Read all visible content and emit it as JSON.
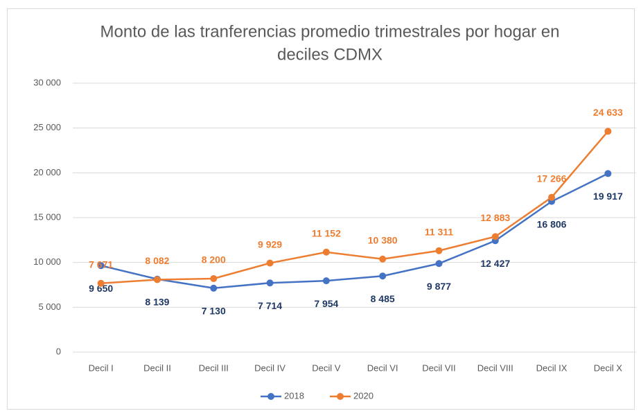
{
  "chart_data": {
    "type": "line",
    "title": [
      "Monto de las tranferencias promedio trimestrales por hogar en",
      "deciles CDMX"
    ],
    "categories": [
      "Decil I",
      "Decil II",
      "Decil III",
      "Decil IV",
      "Decil V",
      "Decil VI",
      "Decil VII",
      "Decil VIII",
      "Decil IX",
      "Decil X"
    ],
    "series": [
      {
        "name": "2018",
        "color": "#4472c4",
        "label_color": "#1f3864",
        "values": [
          9650,
          8139,
          7130,
          7714,
          7954,
          8485,
          9877,
          12427,
          16806,
          19917
        ],
        "value_labels": [
          "9 650",
          "8 139",
          "7 130",
          "7 714",
          "7 954",
          "8 485",
          "9 877",
          "12 427",
          "16 806",
          "19 917"
        ]
      },
      {
        "name": "2020",
        "color": "#ed7d31",
        "label_color": "#ed7d31",
        "values": [
          7671,
          8082,
          8200,
          9929,
          11152,
          10380,
          11311,
          12883,
          17266,
          24633
        ],
        "value_labels": [
          "7 671",
          "8 082",
          "8 200",
          "9 929",
          "11 152",
          "10 380",
          "11 311",
          "12 883",
          "17 266",
          "24 633"
        ]
      }
    ],
    "ylim": [
      0,
      30000
    ],
    "yticks": [
      0,
      {
        "value": 5000,
        "label": "5 000"
      },
      {
        "value": 10000,
        "label": "10 000"
      },
      {
        "value": 15000,
        "label": "15 000"
      },
      {
        "value": 20000,
        "label": "20 000"
      },
      {
        "value": 25000,
        "label": "25 000"
      },
      {
        "value": 30000,
        "label": "30 000"
      }
    ],
    "grid": true,
    "legend": "bottom"
  }
}
